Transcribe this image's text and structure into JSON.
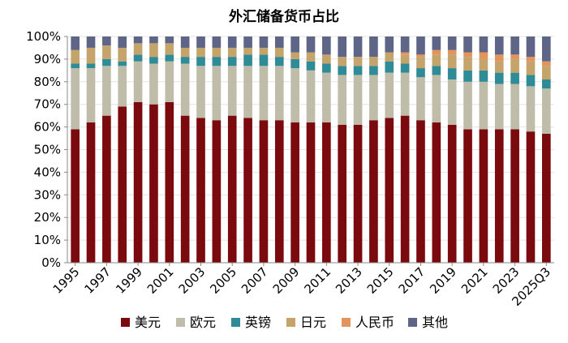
{
  "chart_data": {
    "type": "bar",
    "stacked": true,
    "title": "外汇储备货币占比",
    "xlabel": "",
    "ylabel": "",
    "ylim": [
      0,
      100
    ],
    "yticks": [
      "0%",
      "10%",
      "20%",
      "30%",
      "40%",
      "50%",
      "60%",
      "70%",
      "80%",
      "90%",
      "100%"
    ],
    "categories": [
      "1995",
      "1996",
      "1997",
      "1998",
      "1999",
      "2000",
      "2001",
      "2002",
      "2003",
      "2004",
      "2005",
      "2006",
      "2007",
      "2008",
      "2009",
      "2010",
      "2011",
      "2012",
      "2013",
      "2014",
      "2015",
      "2016",
      "2017",
      "2018",
      "2019",
      "2020",
      "2021",
      "2022",
      "2023",
      "2024",
      "2025Q3"
    ],
    "xtick_labels": [
      "1995",
      "1997",
      "1999",
      "2001",
      "2003",
      "2005",
      "2007",
      "2009",
      "2011",
      "2013",
      "2015",
      "2017",
      "2019",
      "2021",
      "2023",
      "2025Q3"
    ],
    "xtick_indices": [
      0,
      2,
      4,
      6,
      8,
      10,
      12,
      14,
      16,
      18,
      20,
      22,
      24,
      26,
      28,
      30
    ],
    "legend_position": "bottom",
    "series": [
      {
        "name": "美元",
        "color": "#7a0a0d",
        "values": [
          59,
          62,
          65,
          69,
          71,
          70,
          71,
          65,
          64,
          63,
          65,
          64,
          63,
          63,
          62,
          62,
          62,
          61,
          61,
          63,
          64,
          65,
          63,
          62,
          61,
          59,
          59,
          59,
          59,
          58,
          57
        ]
      },
      {
        "name": "欧元",
        "color": "#bfbcaa",
        "values": [
          27,
          24,
          22,
          18,
          18,
          18,
          18,
          23,
          23,
          24,
          22,
          23,
          24,
          24,
          24,
          23,
          22,
          22,
          22,
          20,
          20,
          19,
          19,
          21,
          20,
          21,
          21,
          20,
          20,
          20,
          20
        ]
      },
      {
        "name": "英镑",
        "color": "#2f8b96",
        "values": [
          2,
          2,
          3,
          2,
          3,
          3,
          3,
          3,
          4,
          4,
          4,
          5,
          5,
          4,
          4,
          4,
          4,
          4,
          4,
          4,
          5,
          4,
          4,
          4,
          5,
          5,
          5,
          5,
          5,
          5,
          4
        ]
      },
      {
        "name": "日元",
        "color": "#c4a46b",
        "values": [
          6,
          7,
          6,
          6,
          5,
          6,
          5,
          4,
          4,
          4,
          4,
          3,
          3,
          4,
          3,
          4,
          4,
          4,
          4,
          4,
          4,
          4,
          5,
          5,
          6,
          6,
          5,
          5,
          6,
          6,
          6
        ]
      },
      {
        "name": "人民币",
        "color": "#e3935c",
        "values": [
          0,
          0,
          0,
          0,
          0,
          0,
          0,
          0,
          0,
          0,
          0,
          0,
          0,
          0,
          0,
          0,
          0,
          0,
          0,
          0,
          0,
          1,
          1,
          2,
          2,
          2,
          3,
          3,
          2,
          2,
          2
        ]
      },
      {
        "name": "其他",
        "color": "#5f6587",
        "values": [
          6,
          5,
          4,
          5,
          3,
          3,
          3,
          5,
          5,
          5,
          5,
          5,
          5,
          5,
          7,
          7,
          8,
          9,
          9,
          9,
          7,
          7,
          8,
          6,
          6,
          7,
          7,
          8,
          8,
          9,
          11
        ]
      }
    ]
  }
}
